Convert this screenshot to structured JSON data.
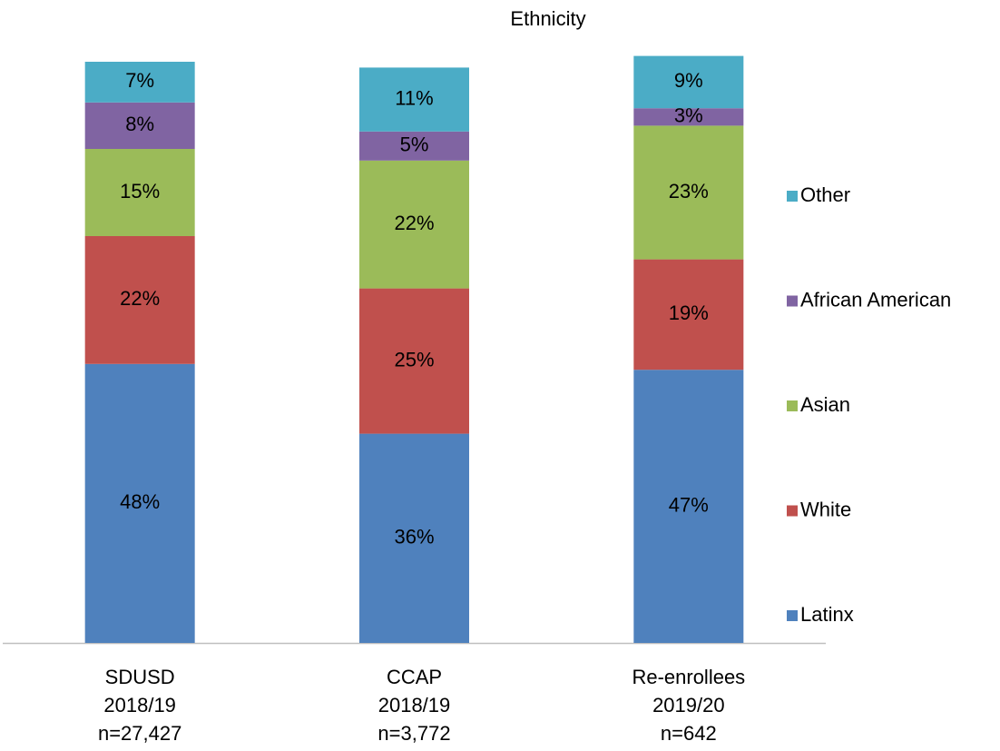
{
  "chart_data": {
    "type": "bar",
    "stacked": true,
    "title": "Ethnicity",
    "categories": [
      [
        "SDUSD",
        "2018/19",
        "n=27,427"
      ],
      [
        "CCAP",
        "2018/19",
        "n=3,772"
      ],
      [
        "Re-enrollees",
        "2019/20",
        "n=642"
      ]
    ],
    "ylim": [
      0,
      100
    ],
    "legend": "right",
    "series": [
      {
        "name": "Latinx",
        "color": "#4f81bd",
        "values": [
          48,
          36,
          47
        ],
        "value_labels": [
          "48%",
          "36%",
          "47%"
        ]
      },
      {
        "name": "White",
        "color": "#c0504d",
        "values": [
          22,
          25,
          19
        ],
        "value_labels": [
          "22%",
          "25%",
          "19%"
        ]
      },
      {
        "name": "Asian",
        "color": "#9bbb59",
        "values": [
          15,
          22,
          23
        ],
        "value_labels": [
          "15%",
          "22%",
          "23%"
        ]
      },
      {
        "name": "African American",
        "color": "#8064a2",
        "values": [
          8,
          5,
          3
        ],
        "value_labels": [
          "8%",
          "5%",
          "3%"
        ]
      },
      {
        "name": "Other",
        "color": "#4bacc6",
        "values": [
          7,
          11,
          9
        ],
        "value_labels": [
          "7%",
          "11%",
          "9%"
        ]
      }
    ]
  }
}
